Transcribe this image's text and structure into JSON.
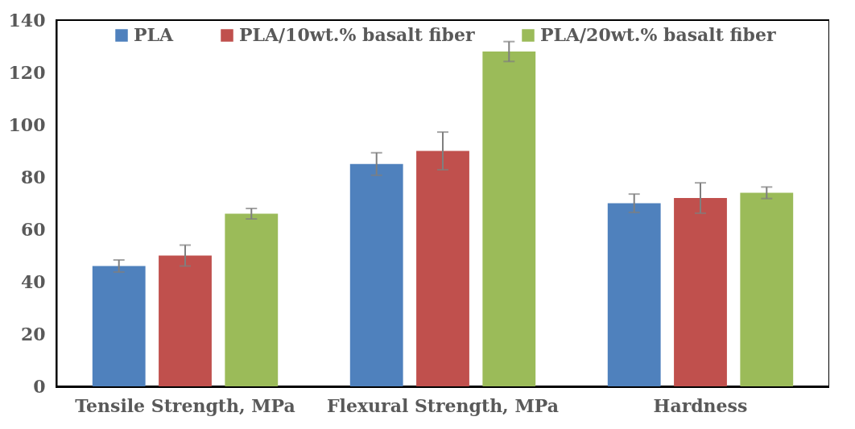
{
  "chart_data": {
    "type": "bar",
    "categories": [
      "Tensile Strength, MPa",
      "Flexural Strength, MPa",
      "Hardness"
    ],
    "series": [
      {
        "name": "PLA",
        "color": "#4f81bd",
        "values": [
          46,
          85,
          70
        ],
        "errors": [
          2.3,
          4.3,
          3.5
        ]
      },
      {
        "name": "PLA/10wt.% basalt fiber",
        "color": "#c0504d",
        "values": [
          50,
          90,
          72
        ],
        "errors": [
          4,
          7.2,
          5.8
        ]
      },
      {
        "name": "PLA/20wt.% basalt fiber",
        "color": "#9bbb59",
        "values": [
          66,
          128,
          74
        ],
        "errors": [
          2,
          3.8,
          2.2
        ]
      }
    ],
    "ylim": [
      0,
      140
    ],
    "yticks": [
      0,
      20,
      40,
      60,
      80,
      100,
      120,
      140
    ],
    "grid": false,
    "legend": "top"
  }
}
